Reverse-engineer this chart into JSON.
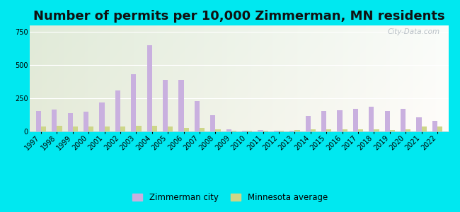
{
  "title": "Number of permits per 10,000 Zimmerman, MN residents",
  "years": [
    1997,
    1998,
    1999,
    2000,
    2001,
    2002,
    2003,
    2004,
    2005,
    2006,
    2007,
    2008,
    2009,
    2010,
    2011,
    2012,
    2013,
    2014,
    2015,
    2016,
    2017,
    2018,
    2019,
    2020,
    2021,
    2022
  ],
  "zimmerman": [
    155,
    165,
    140,
    150,
    220,
    310,
    430,
    650,
    390,
    390,
    230,
    125,
    15,
    8,
    10,
    8,
    8,
    115,
    155,
    160,
    170,
    185,
    155,
    170,
    105,
    80
  ],
  "mn_avg": [
    40,
    45,
    40,
    35,
    40,
    40,
    45,
    45,
    40,
    25,
    25,
    18,
    8,
    8,
    8,
    8,
    10,
    15,
    18,
    18,
    18,
    18,
    12,
    15,
    35,
    35
  ],
  "zimmerman_color": "#c9b0df",
  "mn_avg_color": "#cdd688",
  "background_outer": "#00e8f0",
  "background_inner": "#e8f0e0",
  "ylim": [
    0,
    800
  ],
  "yticks": [
    0,
    250,
    500,
    750
  ],
  "bar_width": 0.32,
  "title_fontsize": 13,
  "tick_fontsize": 7,
  "legend_fontsize": 8.5,
  "watermark": "City-Data.com"
}
